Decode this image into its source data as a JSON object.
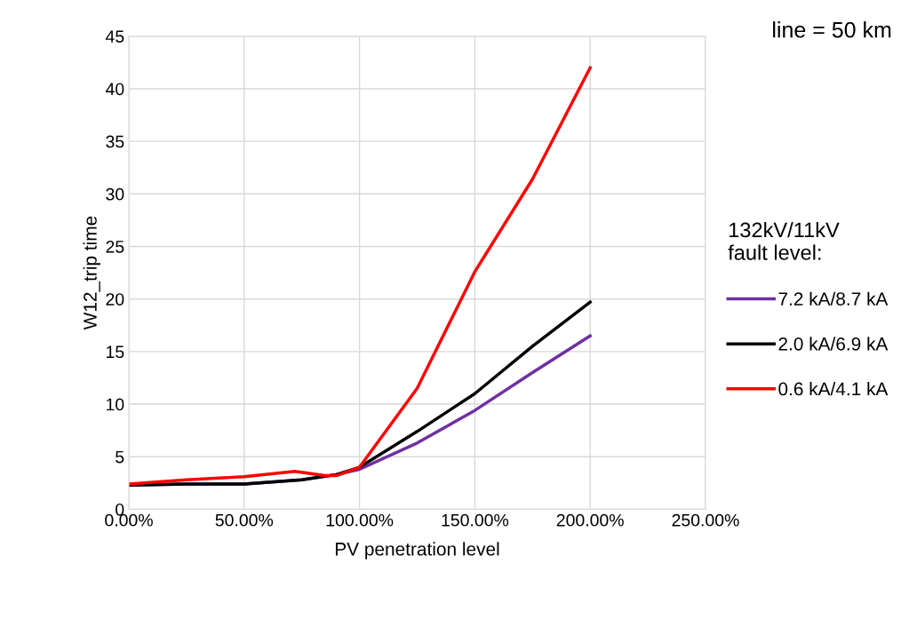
{
  "chart_data": {
    "type": "line",
    "xlabel": "PV penetration level",
    "ylabel": "W12_trip time",
    "legend_title": "132kV/11kV\nfault level:",
    "annotations": [
      "line = 50 km"
    ],
    "series": [
      {
        "name": "7.2 kA/8.7 kA",
        "color": "#7030a0",
        "x": [
          0,
          25,
          50,
          75,
          90,
          100,
          125,
          150,
          175,
          200
        ],
        "values": [
          2.3,
          2.4,
          2.4,
          2.8,
          3.3,
          3.8,
          6.3,
          9.4,
          13.0,
          16.5
        ]
      },
      {
        "name": "2.0 kA/6.9 kA",
        "color": "#000000",
        "x": [
          0,
          25,
          50,
          75,
          90,
          100,
          125,
          150,
          175,
          200
        ],
        "values": [
          2.3,
          2.4,
          2.4,
          2.8,
          3.3,
          4.0,
          7.4,
          11.0,
          15.5,
          19.7
        ]
      },
      {
        "name": "0.6 kA/4.1 kA",
        "color": "#ff0000",
        "x": [
          0,
          25,
          50,
          72,
          85,
          90,
          100,
          125,
          150,
          175,
          200
        ],
        "values": [
          2.4,
          2.8,
          3.1,
          3.6,
          3.2,
          3.2,
          4.0,
          11.5,
          22.6,
          31.4,
          42.0
        ]
      }
    ],
    "xlim": [
      0,
      250
    ],
    "xticks": [
      {
        "value": 0,
        "label": "0.00%"
      },
      {
        "value": 50,
        "label": "50.00%"
      },
      {
        "value": 100,
        "label": "100.00%"
      },
      {
        "value": 150,
        "label": "150.00%"
      },
      {
        "value": 200,
        "label": "200.00%"
      },
      {
        "value": 250,
        "label": "250.00%"
      }
    ],
    "ylim": [
      0,
      45
    ],
    "yticks": [
      0,
      5,
      10,
      15,
      20,
      25,
      30,
      35,
      40,
      45
    ],
    "grid": true,
    "legend": "right",
    "marker": "none",
    "line_style": "solid"
  }
}
